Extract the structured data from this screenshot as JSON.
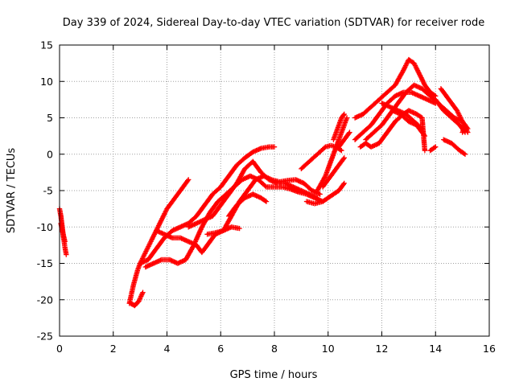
{
  "chart_data": {
    "type": "scatter",
    "title": "Day 339 of 2024, Sidereal Day-to-day VTEC variation (SDTVAR) for receiver rode",
    "xlabel": "GPS time / hours",
    "ylabel": "SDTVAR / TECUs",
    "xlim": [
      0,
      16
    ],
    "ylim": [
      -25,
      15
    ],
    "xticks": [
      0,
      2,
      4,
      6,
      8,
      10,
      12,
      14,
      16
    ],
    "yticks": [
      -25,
      -20,
      -15,
      -10,
      -5,
      0,
      5,
      10,
      15
    ],
    "grid": true,
    "marker": "+",
    "color": "#ff0000",
    "series": [
      {
        "x": [
          0.0,
          0.05,
          0.1,
          0.15,
          0.2,
          0.25
        ],
        "y": [
          -7.5,
          -8.5,
          -10.0,
          -11.5,
          -12.8,
          -13.8
        ]
      },
      {
        "x": [
          0.05,
          0.1,
          0.15,
          0.2
        ],
        "y": [
          -9.5,
          -10.5,
          -11.2,
          -12.0
        ]
      },
      {
        "x": [
          2.6,
          2.75,
          2.9,
          3.0,
          3.2,
          3.4,
          3.6,
          3.8,
          4.0,
          4.2,
          4.4,
          4.6,
          4.8
        ],
        "y": [
          -20.5,
          -18.0,
          -16.0,
          -15.0,
          -13.5,
          -12.0,
          -10.5,
          -9.0,
          -7.5,
          -6.5,
          -5.5,
          -4.5,
          -3.5
        ]
      },
      {
        "x": [
          2.65,
          2.8,
          2.95,
          3.1
        ],
        "y": [
          -20.5,
          -20.8,
          -20.2,
          -19.0
        ]
      },
      {
        "x": [
          3.0,
          3.3,
          3.6,
          3.9,
          4.2,
          4.5,
          4.8,
          5.1,
          5.4,
          5.7,
          6.0,
          6.3,
          6.6,
          6.9,
          7.2,
          7.5,
          7.8,
          8.0
        ],
        "y": [
          -15.0,
          -14.5,
          -13.0,
          -11.5,
          -10.5,
          -10.0,
          -9.5,
          -8.5,
          -7.0,
          -5.5,
          -4.5,
          -3.0,
          -1.5,
          -0.5,
          0.3,
          0.8,
          1.0,
          1.0
        ]
      },
      {
        "x": [
          3.2,
          3.5,
          3.8,
          4.1,
          4.4,
          4.7,
          5.0,
          5.3,
          5.6,
          5.9,
          6.2,
          6.5,
          6.8,
          7.1,
          7.4,
          7.7,
          8.0,
          8.3,
          8.6,
          8.9,
          9.2,
          9.5,
          9.8
        ],
        "y": [
          -15.5,
          -15.0,
          -14.5,
          -14.5,
          -15.0,
          -14.5,
          -12.5,
          -10.0,
          -8.0,
          -6.5,
          -5.5,
          -4.5,
          -3.5,
          -3.0,
          -3.5,
          -4.5,
          -4.5,
          -4.5,
          -4.8,
          -5.2,
          -5.5,
          -6.0,
          -6.5
        ]
      },
      {
        "x": [
          3.6,
          3.9,
          4.2,
          4.5,
          4.8,
          5.1,
          5.3,
          5.5,
          5.8,
          6.1,
          6.4,
          6.7
        ],
        "y": [
          -10.5,
          -11.0,
          -11.5,
          -11.5,
          -12.0,
          -12.5,
          -13.5,
          -12.5,
          -11.0,
          -10.5,
          -10.0,
          -10.2
        ]
      },
      {
        "x": [
          4.8,
          5.1,
          5.4,
          5.7,
          6.0,
          6.3,
          6.6,
          6.9,
          7.2,
          7.5,
          7.8,
          8.1,
          8.4,
          8.7,
          9.0,
          9.3,
          9.6
        ],
        "y": [
          -10.0,
          -9.5,
          -9.0,
          -8.5,
          -7.0,
          -5.5,
          -4.0,
          -2.0,
          -1.0,
          -2.5,
          -3.5,
          -4.0,
          -4.0,
          -4.5,
          -5.0,
          -5.5,
          -6.0
        ]
      },
      {
        "x": [
          5.5,
          5.8,
          6.1,
          6.4,
          6.7,
          7.0,
          7.3,
          7.6,
          7.9,
          8.2,
          8.5,
          8.8,
          9.1,
          9.4,
          9.7
        ],
        "y": [
          -11.0,
          -10.8,
          -10.5,
          -8.5,
          -6.5,
          -5.0,
          -3.5,
          -3.0,
          -3.5,
          -3.8,
          -3.6,
          -3.5,
          -4.0,
          -5.0,
          -5.5
        ]
      },
      {
        "x": [
          6.3,
          6.6,
          6.9,
          7.2,
          7.5,
          7.7
        ],
        "y": [
          -8.5,
          -7.0,
          -6.0,
          -5.5,
          -6.0,
          -6.5
        ]
      },
      {
        "x": [
          9.0,
          9.3,
          9.6,
          9.9,
          10.1,
          10.3,
          10.5
        ],
        "y": [
          -2.0,
          -1.0,
          0.0,
          1.0,
          1.2,
          1.0,
          0.5
        ]
      },
      {
        "x": [
          9.2,
          9.5,
          9.8,
          10.0,
          10.2,
          10.4,
          10.6
        ],
        "y": [
          -6.5,
          -6.8,
          -6.5,
          -6.0,
          -5.5,
          -5.0,
          -4.0
        ]
      },
      {
        "x": [
          9.6,
          9.9,
          10.1,
          10.3,
          10.5,
          10.7
        ],
        "y": [
          -5.0,
          -3.0,
          -1.0,
          1.0,
          3.0,
          5.0
        ]
      },
      {
        "x": [
          9.8,
          10.0,
          10.2,
          10.4,
          10.6
        ],
        "y": [
          -4.5,
          -3.5,
          -2.5,
          -1.5,
          -0.5
        ]
      },
      {
        "x": [
          10.4,
          10.6,
          10.8
        ],
        "y": [
          1.0,
          2.0,
          3.0
        ]
      },
      {
        "x": [
          10.2,
          10.3,
          10.4,
          10.5,
          10.6
        ],
        "y": [
          2.0,
          3.0,
          4.0,
          5.0,
          5.5
        ]
      },
      {
        "x": [
          11.0,
          11.3,
          11.6,
          11.9,
          12.2,
          12.5,
          12.8,
          13.0,
          13.2,
          13.4,
          13.6,
          13.8,
          14.0
        ],
        "y": [
          5.0,
          5.5,
          6.5,
          7.5,
          8.5,
          9.5,
          11.5,
          13.0,
          12.5,
          11.0,
          9.5,
          8.5,
          8.0
        ]
      },
      {
        "x": [
          11.0,
          11.3,
          11.6,
          11.9,
          12.2,
          12.5,
          12.8,
          13.1,
          13.4,
          13.7,
          14.0
        ],
        "y": [
          2.0,
          3.0,
          4.0,
          5.5,
          7.0,
          8.0,
          8.5,
          8.5,
          8.0,
          7.5,
          7.0
        ]
      },
      {
        "x": [
          11.2,
          11.4,
          11.6,
          11.9,
          12.2,
          12.5,
          12.8,
          13.0,
          13.3,
          13.5,
          13.6
        ],
        "y": [
          1.0,
          1.5,
          1.0,
          1.5,
          3.0,
          4.5,
          5.5,
          6.0,
          5.5,
          5.0,
          0.5
        ]
      },
      {
        "x": [
          12.0,
          12.3,
          12.6,
          12.9,
          13.2,
          13.5
        ],
        "y": [
          7.0,
          6.5,
          6.0,
          5.5,
          4.5,
          3.5
        ]
      },
      {
        "x": [
          12.4,
          12.7,
          13.0,
          13.3,
          13.6
        ],
        "y": [
          6.0,
          5.5,
          4.5,
          4.0,
          2.5
        ]
      },
      {
        "x": [
          11.4,
          11.7,
          12.0,
          12.3,
          12.6,
          12.9,
          13.2,
          13.5,
          13.8,
          14.1,
          14.4,
          14.7,
          15.0,
          15.2
        ],
        "y": [
          2.0,
          3.0,
          4.0,
          5.5,
          7.0,
          8.5,
          9.5,
          9.0,
          8.0,
          7.0,
          6.0,
          5.0,
          4.5,
          3.0
        ]
      },
      {
        "x": [
          13.8,
          14.0
        ],
        "y": [
          0.5,
          1.0
        ]
      },
      {
        "x": [
          14.2,
          14.5,
          14.8,
          15.0,
          15.2
        ],
        "y": [
          9.0,
          7.5,
          6.0,
          4.5,
          3.5
        ]
      },
      {
        "x": [
          14.0,
          14.3,
          14.6,
          14.9,
          15.1
        ],
        "y": [
          7.5,
          6.0,
          5.0,
          4.0,
          3.0
        ]
      },
      {
        "x": [
          14.3,
          14.6,
          14.9,
          15.1
        ],
        "y": [
          2.0,
          1.5,
          0.5,
          0.0
        ]
      },
      {
        "x": [
          15.0,
          15.1
        ],
        "y": [
          3.0,
          4.0
        ]
      }
    ]
  }
}
